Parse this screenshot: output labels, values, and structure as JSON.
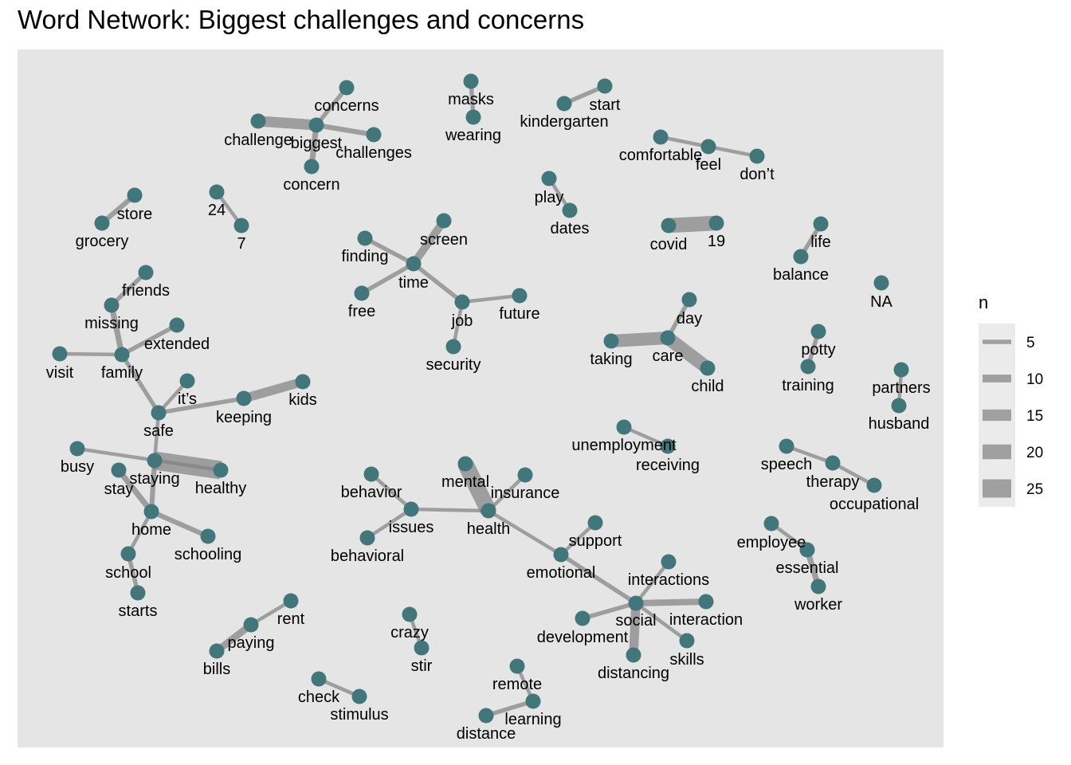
{
  "title": "Word Network: Biggest challenges and concerns",
  "colors": {
    "panel": "#e5e5e5",
    "node": "#41777a",
    "edge": "#808080",
    "legend_bg": "#ebebeb"
  },
  "legend": {
    "title": "n",
    "items": [
      {
        "label": "5",
        "value": 5
      },
      {
        "label": "10",
        "value": 10
      },
      {
        "label": "15",
        "value": 15
      },
      {
        "label": "20",
        "value": 20
      },
      {
        "label": "25",
        "value": 25
      }
    ]
  },
  "nodes": [
    {
      "id": "concerns",
      "label": "concerns"
    },
    {
      "id": "challenge",
      "label": "challenge"
    },
    {
      "id": "biggest",
      "label": "biggest"
    },
    {
      "id": "challenges",
      "label": "challenges"
    },
    {
      "id": "concern",
      "label": "concern"
    },
    {
      "id": "masks",
      "label": "masks"
    },
    {
      "id": "wearing",
      "label": "wearing"
    },
    {
      "id": "start",
      "label": "start"
    },
    {
      "id": "kindergarten",
      "label": "kindergarten"
    },
    {
      "id": "comfortable",
      "label": "comfortable"
    },
    {
      "id": "feel",
      "label": "feel"
    },
    {
      "id": "dont",
      "label": "don’t"
    },
    {
      "id": "store",
      "label": "store"
    },
    {
      "id": "grocery",
      "label": "grocery"
    },
    {
      "id": "n24",
      "label": "24"
    },
    {
      "id": "n7",
      "label": "7"
    },
    {
      "id": "play",
      "label": "play"
    },
    {
      "id": "dates",
      "label": "dates"
    },
    {
      "id": "covid",
      "label": "covid"
    },
    {
      "id": "n19",
      "label": "19"
    },
    {
      "id": "life",
      "label": "life"
    },
    {
      "id": "balance",
      "label": "balance"
    },
    {
      "id": "NA",
      "label": "NA"
    },
    {
      "id": "screen",
      "label": "screen"
    },
    {
      "id": "finding",
      "label": "finding"
    },
    {
      "id": "time",
      "label": "time"
    },
    {
      "id": "free",
      "label": "free"
    },
    {
      "id": "job",
      "label": "job"
    },
    {
      "id": "future",
      "label": "future"
    },
    {
      "id": "security",
      "label": "security"
    },
    {
      "id": "friends",
      "label": "friends"
    },
    {
      "id": "missing",
      "label": "missing"
    },
    {
      "id": "extended",
      "label": "extended"
    },
    {
      "id": "visit",
      "label": "visit"
    },
    {
      "id": "family",
      "label": "family"
    },
    {
      "id": "its",
      "label": "it’s"
    },
    {
      "id": "kids",
      "label": "kids"
    },
    {
      "id": "keeping",
      "label": "keeping"
    },
    {
      "id": "safe",
      "label": "safe"
    },
    {
      "id": "busy",
      "label": "busy"
    },
    {
      "id": "stay",
      "label": "stay"
    },
    {
      "id": "staying",
      "label": "staying"
    },
    {
      "id": "healthy",
      "label": "healthy"
    },
    {
      "id": "home",
      "label": "home"
    },
    {
      "id": "schooling",
      "label": "schooling"
    },
    {
      "id": "school",
      "label": "school"
    },
    {
      "id": "starts",
      "label": "starts"
    },
    {
      "id": "day",
      "label": "day"
    },
    {
      "id": "taking",
      "label": "taking"
    },
    {
      "id": "care",
      "label": "care"
    },
    {
      "id": "child",
      "label": "child"
    },
    {
      "id": "potty",
      "label": "potty"
    },
    {
      "id": "training",
      "label": "training"
    },
    {
      "id": "partners",
      "label": "partners"
    },
    {
      "id": "husband",
      "label": "husband"
    },
    {
      "id": "unemployment",
      "label": "unemployment"
    },
    {
      "id": "receiving",
      "label": "receiving"
    },
    {
      "id": "speech",
      "label": "speech"
    },
    {
      "id": "therapy",
      "label": "therapy"
    },
    {
      "id": "occupational",
      "label": "occupational"
    },
    {
      "id": "behavior",
      "label": "behavior"
    },
    {
      "id": "issues",
      "label": "issues"
    },
    {
      "id": "behavioral",
      "label": "behavioral"
    },
    {
      "id": "mental",
      "label": "mental"
    },
    {
      "id": "insurance",
      "label": "insurance"
    },
    {
      "id": "health",
      "label": "health"
    },
    {
      "id": "support",
      "label": "support"
    },
    {
      "id": "emotional",
      "label": "emotional"
    },
    {
      "id": "employee",
      "label": "employee"
    },
    {
      "id": "essential",
      "label": "essential"
    },
    {
      "id": "worker",
      "label": "worker"
    },
    {
      "id": "interactions",
      "label": "interactions"
    },
    {
      "id": "social",
      "label": "social"
    },
    {
      "id": "interaction",
      "label": "interaction"
    },
    {
      "id": "development",
      "label": "development"
    },
    {
      "id": "distancing",
      "label": "distancing"
    },
    {
      "id": "skills",
      "label": "skills"
    },
    {
      "id": "rent",
      "label": "rent"
    },
    {
      "id": "paying",
      "label": "paying"
    },
    {
      "id": "bills",
      "label": "bills"
    },
    {
      "id": "crazy",
      "label": "crazy"
    },
    {
      "id": "stir",
      "label": "stir"
    },
    {
      "id": "remote",
      "label": "remote"
    },
    {
      "id": "learning",
      "label": "learning"
    },
    {
      "id": "distance",
      "label": "distance"
    },
    {
      "id": "check",
      "label": "check"
    },
    {
      "id": "stimulus",
      "label": "stimulus"
    }
  ],
  "edges": [
    {
      "from": "biggest",
      "to": "concerns",
      "n": 5
    },
    {
      "from": "challenge",
      "to": "biggest",
      "n": 14
    },
    {
      "from": "biggest",
      "to": "challenges",
      "n": 6
    },
    {
      "from": "biggest",
      "to": "concern",
      "n": 7
    },
    {
      "from": "masks",
      "to": "wearing",
      "n": 5
    },
    {
      "from": "start",
      "to": "kindergarten",
      "n": 5
    },
    {
      "from": "comfortable",
      "to": "feel",
      "n": 4
    },
    {
      "from": "feel",
      "to": "dont",
      "n": 4
    },
    {
      "from": "grocery",
      "to": "store",
      "n": 6
    },
    {
      "from": "n24",
      "to": "n7",
      "n": 4
    },
    {
      "from": "play",
      "to": "dates",
      "n": 4
    },
    {
      "from": "covid",
      "to": "n19",
      "n": 20
    },
    {
      "from": "life",
      "to": "balance",
      "n": 5
    },
    {
      "from": "screen",
      "to": "time",
      "n": 10
    },
    {
      "from": "finding",
      "to": "time",
      "n": 5
    },
    {
      "from": "free",
      "to": "time",
      "n": 5
    },
    {
      "from": "time",
      "to": "job",
      "n": 5
    },
    {
      "from": "job",
      "to": "future",
      "n": 4
    },
    {
      "from": "job",
      "to": "security",
      "n": 4
    },
    {
      "from": "missing",
      "to": "friends",
      "n": 5
    },
    {
      "from": "missing",
      "to": "family",
      "n": 7
    },
    {
      "from": "extended",
      "to": "family",
      "n": 5
    },
    {
      "from": "visit",
      "to": "family",
      "n": 4
    },
    {
      "from": "family",
      "to": "safe",
      "n": 5
    },
    {
      "from": "its",
      "to": "safe",
      "n": 4
    },
    {
      "from": "keeping",
      "to": "kids",
      "n": 12
    },
    {
      "from": "keeping",
      "to": "safe",
      "n": 5
    },
    {
      "from": "safe",
      "to": "staying",
      "n": 4
    },
    {
      "from": "staying",
      "to": "healthy",
      "n": 25
    },
    {
      "from": "busy",
      "to": "healthy",
      "n": 4
    },
    {
      "from": "stay",
      "to": "home",
      "n": 7
    },
    {
      "from": "staying",
      "to": "home",
      "n": 6
    },
    {
      "from": "home",
      "to": "schooling",
      "n": 6
    },
    {
      "from": "home",
      "to": "school",
      "n": 4
    },
    {
      "from": "school",
      "to": "starts",
      "n": 5
    },
    {
      "from": "day",
      "to": "care",
      "n": 5
    },
    {
      "from": "taking",
      "to": "care",
      "n": 17
    },
    {
      "from": "care",
      "to": "child",
      "n": 18
    },
    {
      "from": "potty",
      "to": "training",
      "n": 5
    },
    {
      "from": "partners",
      "to": "husband",
      "n": 4
    },
    {
      "from": "unemployment",
      "to": "receiving",
      "n": 4
    },
    {
      "from": "speech",
      "to": "therapy",
      "n": 4
    },
    {
      "from": "therapy",
      "to": "occupational",
      "n": 4
    },
    {
      "from": "behavior",
      "to": "issues",
      "n": 4
    },
    {
      "from": "behavioral",
      "to": "issues",
      "n": 4
    },
    {
      "from": "issues",
      "to": "health",
      "n": 4
    },
    {
      "from": "mental",
      "to": "health",
      "n": 22
    },
    {
      "from": "insurance",
      "to": "health",
      "n": 4
    },
    {
      "from": "health",
      "to": "emotional",
      "n": 4
    },
    {
      "from": "emotional",
      "to": "support",
      "n": 4
    },
    {
      "from": "emotional",
      "to": "social",
      "n": 5
    },
    {
      "from": "employee",
      "to": "essential",
      "n": 4
    },
    {
      "from": "essential",
      "to": "worker",
      "n": 7
    },
    {
      "from": "social",
      "to": "interactions",
      "n": 4
    },
    {
      "from": "social",
      "to": "interaction",
      "n": 8
    },
    {
      "from": "social",
      "to": "development",
      "n": 5
    },
    {
      "from": "social",
      "to": "distancing",
      "n": 12
    },
    {
      "from": "social",
      "to": "skills",
      "n": 4
    },
    {
      "from": "rent",
      "to": "paying",
      "n": 4
    },
    {
      "from": "paying",
      "to": "bills",
      "n": 9
    },
    {
      "from": "crazy",
      "to": "stir",
      "n": 4
    },
    {
      "from": "remote",
      "to": "learning",
      "n": 4
    },
    {
      "from": "distance",
      "to": "learning",
      "n": 5
    },
    {
      "from": "check",
      "to": "stimulus",
      "n": 4
    }
  ]
}
